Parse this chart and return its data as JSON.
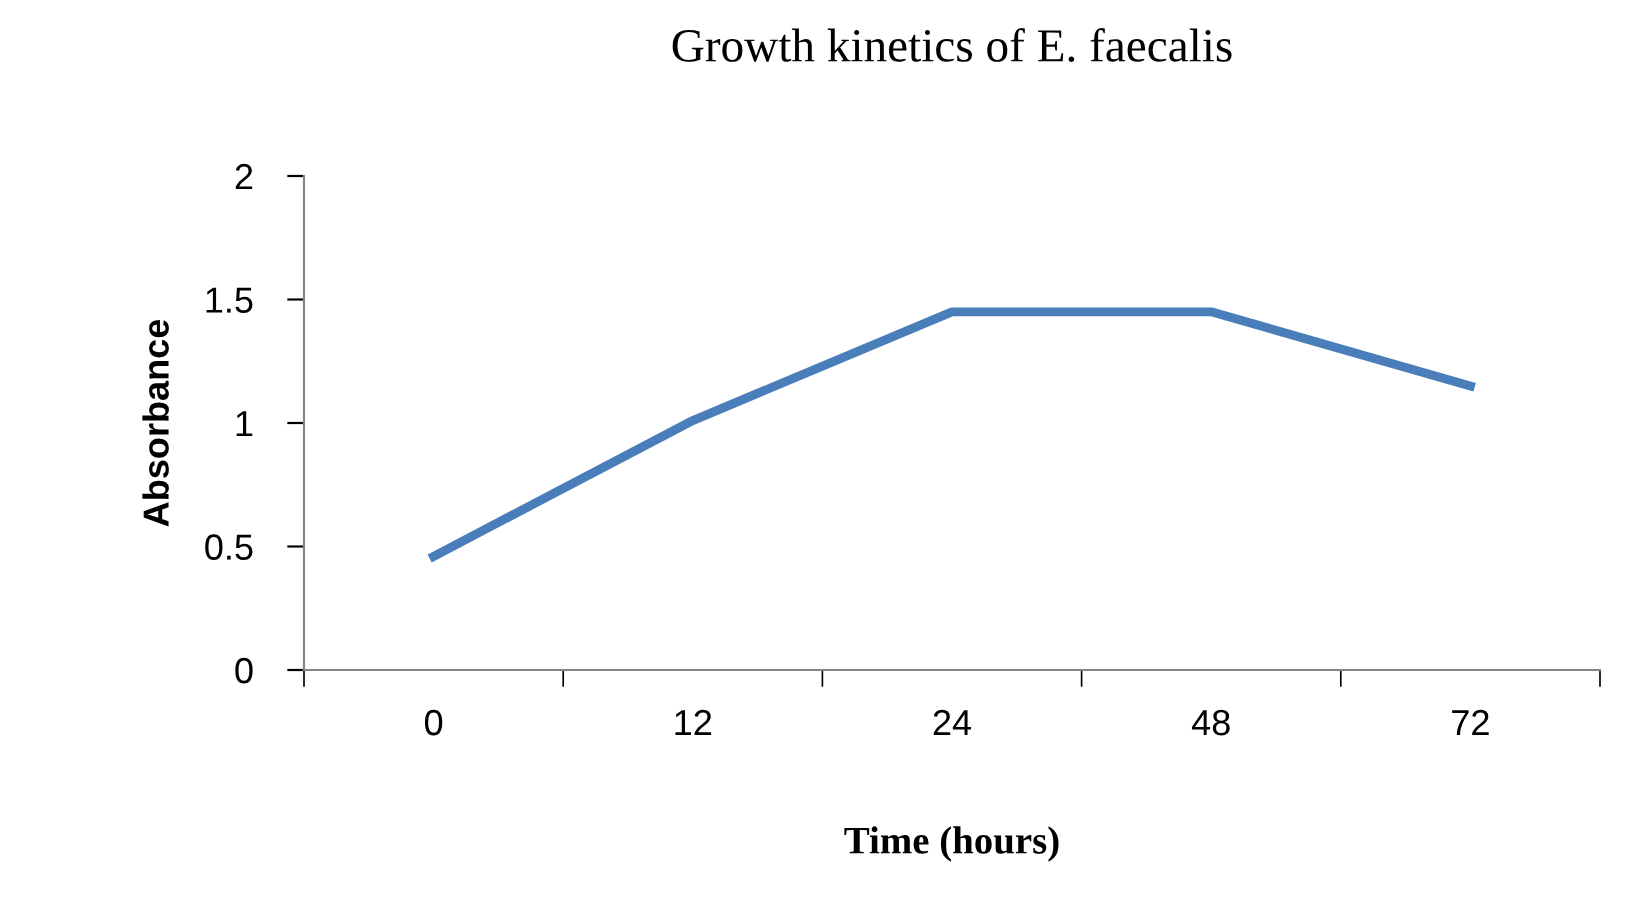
{
  "chart_data": {
    "type": "line",
    "title": "Growth kinetics of E. faecalis",
    "xlabel": "Time (hours)",
    "ylabel": "Absorbance",
    "categories": [
      "0",
      "12",
      "24",
      "48",
      "72"
    ],
    "series": [
      {
        "color": "#4a7ebb",
        "values": [
          0.46,
          1.01,
          1.45,
          1.45,
          1.15
        ]
      }
    ],
    "ylim": [
      0,
      2
    ],
    "yticks": [
      0,
      0.5,
      1,
      1.5,
      2
    ],
    "grid": false,
    "legend": false,
    "marker": "none",
    "line_style": "solid"
  }
}
